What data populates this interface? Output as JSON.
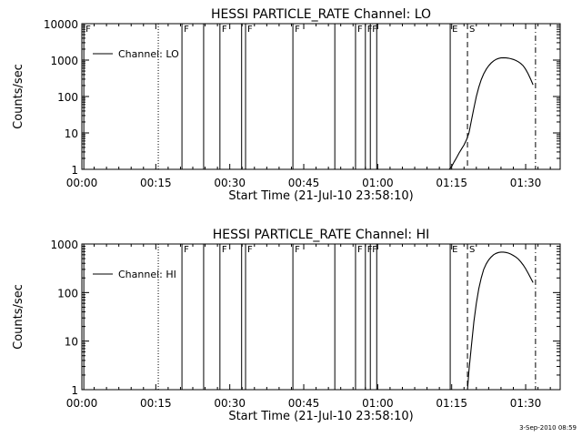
{
  "footer": {
    "timestamp": "3-Sep-2010 08:59"
  },
  "chart_data": [
    {
      "type": "line",
      "title": "HESSI PARTICLE_RATE Channel: LO",
      "xlabel": "Start Time (21-Jul-10 23:58:10)",
      "ylabel": "Counts/sec",
      "x_unit": "minutes after start",
      "xlim": [
        0,
        97
      ],
      "x_ticks": [
        0,
        15,
        30,
        45,
        60,
        75,
        90
      ],
      "x_tick_labels": [
        "00:00",
        "00:15",
        "00:30",
        "00:45",
        "01:00",
        "01:15",
        "01:30"
      ],
      "ylog": true,
      "ylim": [
        1,
        10000
      ],
      "y_ticks": [
        1,
        10,
        100,
        1000,
        10000
      ],
      "y_tick_labels": [
        "1",
        "10",
        "100",
        "1000",
        "10000"
      ],
      "legend": {
        "entries": [
          "Channel: LO"
        ],
        "placement": "top-left"
      },
      "series": [
        {
          "name": "Channel: LO",
          "x": [
            74.5,
            75.0,
            75.5,
            76.0,
            76.5,
            77.0,
            77.5,
            78.0,
            78.5,
            79.0,
            79.5,
            80.0,
            80.5,
            81.0,
            81.5,
            82.0,
            82.5,
            83.0,
            83.5,
            84.0,
            84.5,
            85.0,
            85.5,
            86.0,
            86.5,
            87.0,
            87.5,
            88.0,
            88.5,
            89.0,
            89.5,
            90.0,
            90.5,
            91.0,
            91.5
          ],
          "values": [
            1,
            1.2,
            1.6,
            2.1,
            2.8,
            3.6,
            4.7,
            6.5,
            10,
            22,
            48,
            100,
            180,
            290,
            420,
            560,
            700,
            830,
            950,
            1050,
            1110,
            1150,
            1160,
            1150,
            1130,
            1090,
            1040,
            980,
            900,
            810,
            700,
            560,
            420,
            300,
            210
          ]
        }
      ],
      "markers": [
        {
          "x": 0.4,
          "style": "solid",
          "label": "F"
        },
        {
          "x": 15.5,
          "style": "dotted",
          "label": ""
        },
        {
          "x": 20.3,
          "style": "solid",
          "label": "F"
        },
        {
          "x": 24.7,
          "style": "solid",
          "label": ""
        },
        {
          "x": 28.0,
          "style": "solid",
          "label": "F"
        },
        {
          "x": 32.4,
          "style": "solid",
          "label": ""
        },
        {
          "x": 33.2,
          "style": "solid",
          "label": "F"
        },
        {
          "x": 42.8,
          "style": "solid",
          "label": "F"
        },
        {
          "x": 51.3,
          "style": "solid",
          "label": ""
        },
        {
          "x": 55.5,
          "style": "solid",
          "label": "F"
        },
        {
          "x": 57.5,
          "style": "solid",
          "label": "F"
        },
        {
          "x": 58.5,
          "style": "solid",
          "label": "F"
        },
        {
          "x": 59.8,
          "style": "solid",
          "label": ""
        },
        {
          "x": 74.7,
          "style": "solid",
          "label": "E"
        },
        {
          "x": 78.2,
          "style": "dashed",
          "label": "S"
        },
        {
          "x": 92.0,
          "style": "dashdot",
          "label": ""
        }
      ]
    },
    {
      "type": "line",
      "title": "HESSI PARTICLE_RATE Channel: HI",
      "xlabel": "Start Time (21-Jul-10 23:58:10)",
      "ylabel": "Counts/sec",
      "x_unit": "minutes after start",
      "xlim": [
        0,
        97
      ],
      "x_ticks": [
        0,
        15,
        30,
        45,
        60,
        75,
        90
      ],
      "x_tick_labels": [
        "00:00",
        "00:15",
        "00:30",
        "00:45",
        "01:00",
        "01:15",
        "01:30"
      ],
      "ylog": true,
      "ylim": [
        1,
        1000
      ],
      "y_ticks": [
        1,
        10,
        100,
        1000
      ],
      "y_tick_labels": [
        "1",
        "10",
        "100",
        "1000"
      ],
      "legend": {
        "entries": [
          "Channel: HI"
        ],
        "placement": "top-left"
      },
      "series": [
        {
          "name": "Channel: HI",
          "x": [
            78.2,
            78.5,
            79.0,
            79.5,
            80.0,
            80.5,
            81.0,
            81.5,
            82.0,
            82.5,
            83.0,
            83.5,
            84.0,
            84.5,
            85.0,
            85.5,
            86.0,
            86.5,
            87.0,
            87.5,
            88.0,
            88.5,
            89.0,
            89.5,
            90.0,
            90.5,
            91.0,
            91.5
          ],
          "values": [
            1,
            2.5,
            8,
            25,
            60,
            120,
            200,
            300,
            390,
            470,
            540,
            600,
            640,
            670,
            680,
            680,
            670,
            650,
            620,
            580,
            540,
            490,
            430,
            370,
            310,
            250,
            200,
            160
          ]
        }
      ],
      "markers": [
        {
          "x": 0.4,
          "style": "solid",
          "label": ""
        },
        {
          "x": 15.5,
          "style": "dotted",
          "label": ""
        },
        {
          "x": 20.3,
          "style": "solid",
          "label": "F"
        },
        {
          "x": 24.7,
          "style": "solid",
          "label": ""
        },
        {
          "x": 28.0,
          "style": "solid",
          "label": "F"
        },
        {
          "x": 32.4,
          "style": "solid",
          "label": ""
        },
        {
          "x": 33.2,
          "style": "solid",
          "label": "F"
        },
        {
          "x": 42.8,
          "style": "solid",
          "label": "F"
        },
        {
          "x": 51.3,
          "style": "solid",
          "label": ""
        },
        {
          "x": 55.5,
          "style": "solid",
          "label": "F"
        },
        {
          "x": 57.5,
          "style": "solid",
          "label": "F"
        },
        {
          "x": 58.5,
          "style": "solid",
          "label": "F"
        },
        {
          "x": 59.8,
          "style": "solid",
          "label": ""
        },
        {
          "x": 74.7,
          "style": "solid",
          "label": "E"
        },
        {
          "x": 78.2,
          "style": "dashed",
          "label": "S"
        },
        {
          "x": 92.0,
          "style": "dashdot",
          "label": ""
        }
      ]
    }
  ]
}
